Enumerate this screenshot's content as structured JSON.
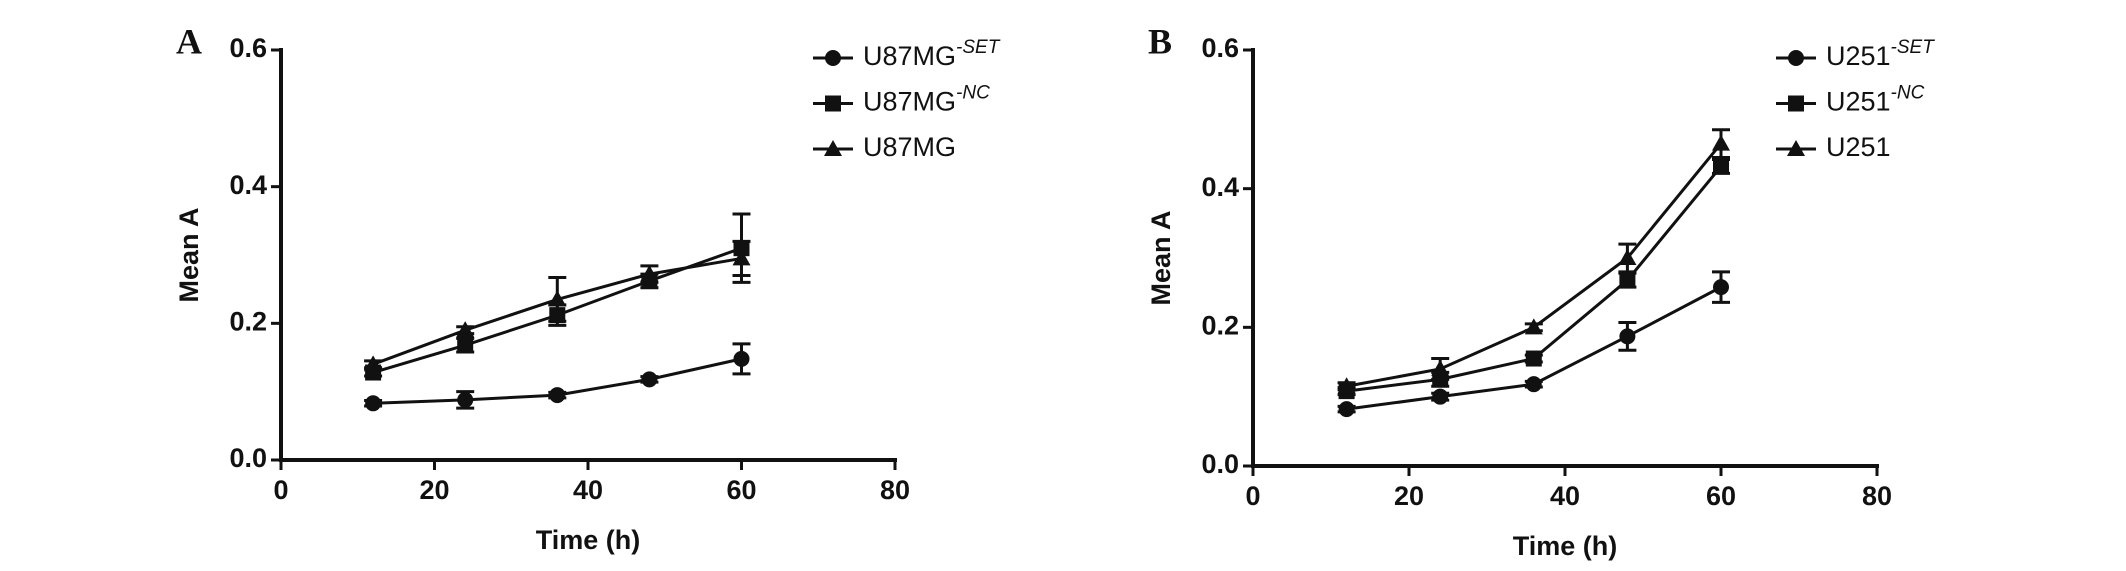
{
  "chart_data": [
    {
      "type": "line",
      "panel": "A",
      "xlabel": "Time (h)",
      "ylabel": "Mean A",
      "x": [
        12,
        24,
        36,
        48,
        60
      ],
      "series": [
        {
          "name": "U87MG",
          "superscript": "-SET",
          "color": "#111111",
          "marker": "circle",
          "values": [
            0.083,
            0.088,
            0.095,
            0.118,
            0.148
          ],
          "errors": [
            0.004,
            0.012,
            0.004,
            0.004,
            0.022
          ]
        },
        {
          "name": "U87MG",
          "superscript": "-NC",
          "color": "#111111",
          "marker": "square",
          "values": [
            0.128,
            0.168,
            0.212,
            0.262,
            0.31
          ],
          "errors": [
            0.005,
            0.01,
            0.015,
            0.01,
            0.05
          ]
        },
        {
          "name": "U87MG",
          "color": "#111111",
          "marker": "triangle",
          "values": [
            0.14,
            0.19,
            0.235,
            0.272,
            0.295
          ],
          "errors": [
            0.005,
            0.005,
            0.032,
            0.012,
            0.025
          ]
        }
      ],
      "xlim": [
        0,
        80
      ],
      "xticks": [
        0,
        20,
        40,
        60,
        80
      ],
      "ylim": [
        0,
        0.6
      ],
      "yticks": [
        {
          "value": 0,
          "label": "0.0"
        },
        0.2,
        0.4,
        0.6
      ],
      "legend": "upper right"
    },
    {
      "type": "line",
      "panel": "B",
      "xlabel": "Time (h)",
      "ylabel": "Mean A",
      "x": [
        12,
        24,
        36,
        48,
        60
      ],
      "series": [
        {
          "name": "U251",
          "superscript": "-SET",
          "color": "#111111",
          "marker": "circle",
          "values": [
            0.082,
            0.1,
            0.118,
            0.187,
            0.258
          ],
          "errors": [
            0.004,
            0.005,
            0.004,
            0.02,
            0.022
          ]
        },
        {
          "name": "U251",
          "superscript": "-NC",
          "color": "#111111",
          "marker": "square",
          "values": [
            0.108,
            0.125,
            0.155,
            0.268,
            0.432
          ],
          "errors": [
            0.005,
            0.01,
            0.005,
            0.01,
            0.01
          ]
        },
        {
          "name": "U251",
          "color": "#111111",
          "marker": "triangle",
          "values": [
            0.115,
            0.14,
            0.2,
            0.3,
            0.465
          ],
          "errors": [
            0.005,
            0.015,
            0.005,
            0.02,
            0.02
          ]
        }
      ],
      "xlim": [
        0,
        80
      ],
      "xticks": [
        0,
        20,
        40,
        60,
        80
      ],
      "ylim": [
        0,
        0.6
      ],
      "yticks": [
        {
          "value": 0,
          "label": "0.0"
        },
        0.2,
        0.4,
        0.6
      ],
      "legend": "upper right"
    }
  ]
}
